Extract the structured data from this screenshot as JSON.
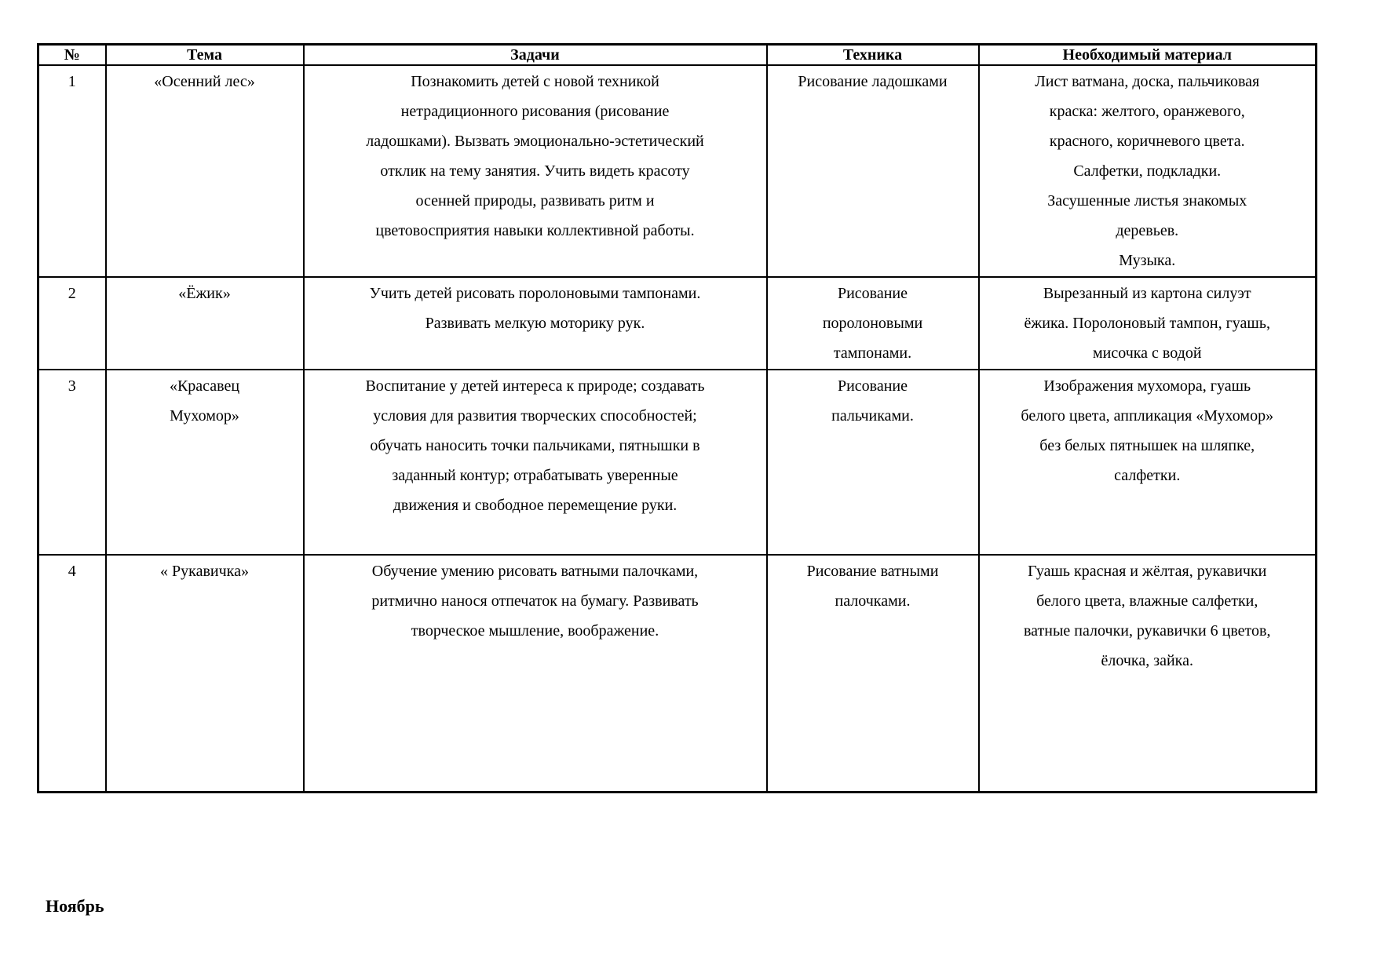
{
  "table": {
    "headers": [
      "№",
      "Тема",
      "Задачи",
      "Техника",
      "Необходимый материал"
    ],
    "rows": [
      {
        "num": "1",
        "tema": "«Осенний лес»",
        "zadachi": "Познакомить детей с новой техникой\nнетрадиционного рисования (рисование\nладошками). Вызвать эмоционально-эстетический\nотклик на тему занятия. Учить видеть красоту\nосенней природы, развивать ритм и\nцветовосприятия навыки коллективной работы.",
        "tekhnika": "Рисование ладошками",
        "material": "Лист ватмана, доска, пальчиковая\nкраска: желтого, оранжевого,\nкрасного, коричневого цвета.\nСалфетки, подкладки.\nЗасушенные листья знакомых\nдеревьев.\nМузыка."
      },
      {
        "num": "2",
        "tema": "«Ёжик»",
        "zadachi": "Учить детей рисовать поролоновыми тампонами.\nРазвивать мелкую моторику рук.",
        "tekhnika": "Рисование\nпоролоновыми\nтампонами.",
        "material": "Вырезанный из картона силуэт\nёжика. Поролоновый тампон, гуашь,\nмисочка с водой"
      },
      {
        "num": "3",
        "tema": "«Красавец\nМухомор»",
        "zadachi": "Воспитание у детей интереса к природе; создавать\nусловия для развития творческих способностей;\nобучать наносить точки пальчиками, пятнышки в\nзаданный контур; отрабатывать уверенные\nдвижения и свободное перемещение руки.",
        "tekhnika": "Рисование\nпальчиками.",
        "material": "Изображения мухомора, гуашь\nбелого цвета, аппликация «Мухомор»\nбез белых пятнышек на шляпке,\nсалфетки."
      },
      {
        "num": "4",
        "tema": "« Рукавичка»",
        "zadachi": "Обучение умению рисовать ватными палочками,\nритмично нанося отпечаток на бумагу. Развивать\nтворческое мышление, воображение.",
        "tekhnika": "Рисование ватными\nпалочками.",
        "material": "Гуашь красная и жёлтая, рукавички\nбелого цвета, влажные салфетки,\nватные палочки,  рукавички 6 цветов,\nёлочка, зайка."
      }
    ]
  },
  "footer": {
    "month_label": "Ноябрь"
  }
}
